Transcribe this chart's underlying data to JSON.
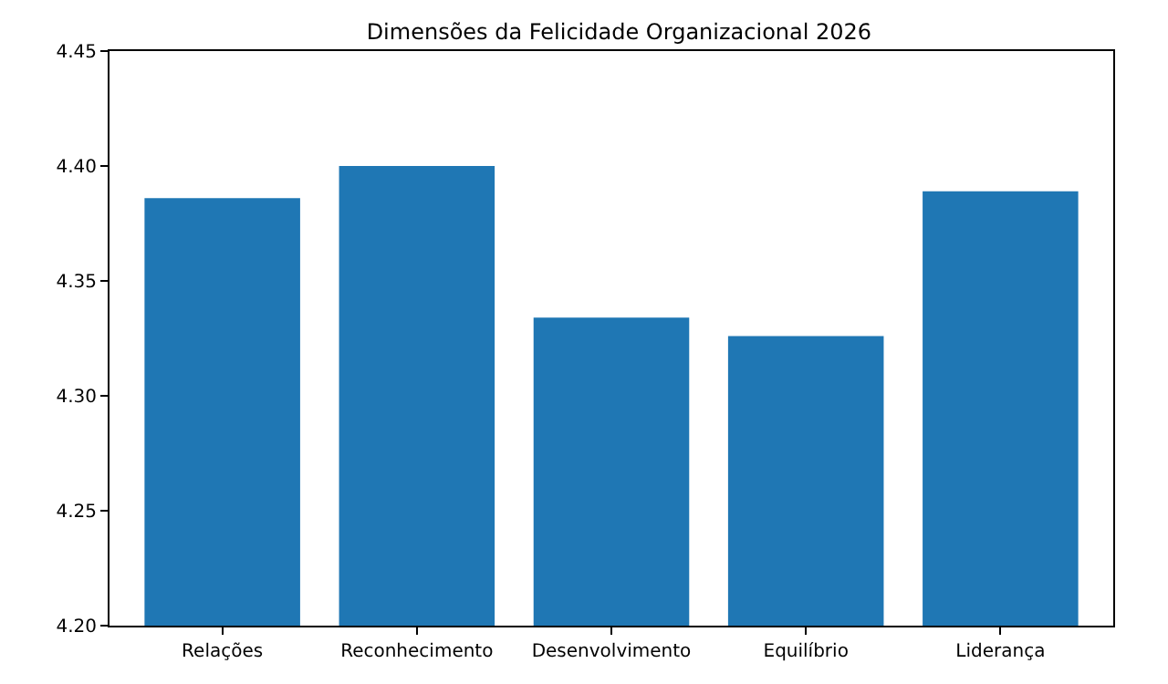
{
  "chart_data": {
    "type": "bar",
    "title": "Dimensões da Felicidade Organizacional 2026",
    "categories": [
      "Relações",
      "Reconhecimento",
      "Desenvolvimento",
      "Equilíbrio",
      "Liderança"
    ],
    "values": [
      4.386,
      4.4,
      4.334,
      4.326,
      4.389
    ],
    "color": "#1f77b4",
    "ylim": [
      4.2,
      4.45
    ],
    "yticks": [
      {
        "value": 4.2,
        "label": "4.20"
      },
      4.25,
      {
        "value": 4.3,
        "label": "4.30"
      },
      4.35,
      {
        "value": 4.4,
        "label": "4.40"
      },
      4.45
    ]
  }
}
